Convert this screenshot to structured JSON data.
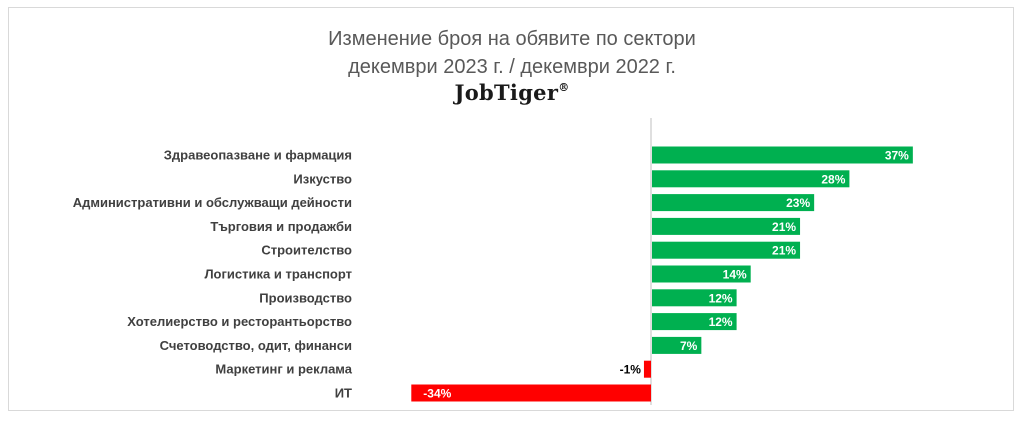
{
  "chart_data": {
    "type": "bar",
    "orientation": "horizontal",
    "title": "Изменение броя на обявите по сектори",
    "subtitle": "декември 2023 г. / декември 2022 г.",
    "brand": "JobTiger",
    "brand_mark": "®",
    "categories": [
      "Здравеопазване и фармация",
      "Изкуство",
      "Административни и обслужващи дейности",
      "Търговия и продажби",
      "Строителство",
      "Логистика и транспорт",
      "Производство",
      "Хотелиерство и ресторантьорство",
      "Счетоводство, одит, финанси",
      "Маркетинг и реклама",
      "ИТ"
    ],
    "values": [
      37,
      28,
      23,
      21,
      21,
      14,
      12,
      12,
      7,
      -1,
      -34
    ],
    "labels": [
      "37%",
      "28%",
      "23%",
      "21%",
      "21%",
      "14%",
      "12%",
      "12%",
      "7%",
      "-1%",
      "-34%"
    ],
    "colors": {
      "positive": "#00b050",
      "negative": "#ff0000",
      "axis": "#bfbfbf",
      "category_text": "#404040",
      "label_on_bar": "#ffffff",
      "label_outside": "#000000"
    },
    "grid": false,
    "legend": "none"
  }
}
